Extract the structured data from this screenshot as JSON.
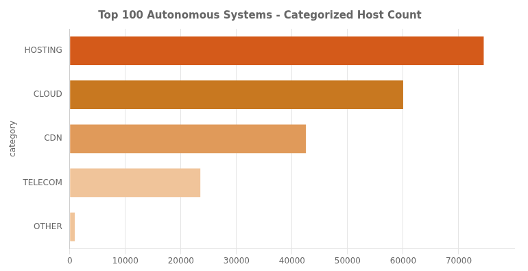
{
  "chart_data": {
    "type": "bar",
    "orientation": "horizontal",
    "title": "Top 100 Autonomous Systems - Categorized Host Count",
    "categories": [
      "OTHER",
      "TELECOM",
      "CDN",
      "CLOUD",
      "HOSTING"
    ],
    "values": [
      900,
      23500,
      42500,
      60000,
      74500
    ],
    "colors": [
      "#F0C49A",
      "#F0C49A",
      "#E09A5A",
      "#C87820",
      "#D45A1A"
    ],
    "ylabel": "category",
    "xlim": [
      0,
      80000
    ],
    "xticks": [
      0,
      10000,
      20000,
      30000,
      40000,
      50000,
      60000,
      70000
    ],
    "grid": true
  }
}
